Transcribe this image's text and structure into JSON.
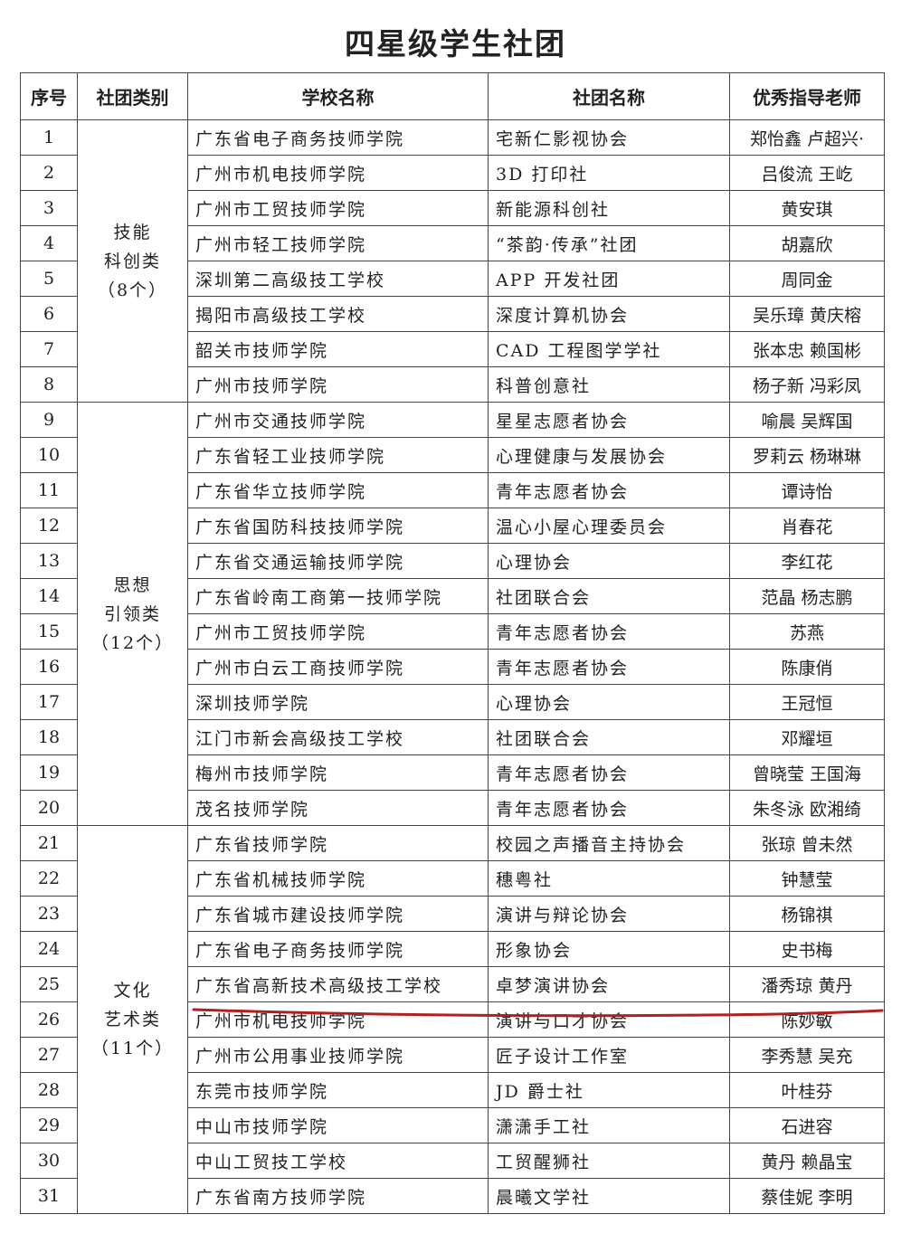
{
  "title": "四星级学生社团",
  "headers": [
    "序号",
    "社团类别",
    "学校名称",
    "社团名称",
    "优秀指导老师"
  ],
  "categories": [
    {
      "name_line1": "技能",
      "name_line2": "科创类",
      "count": "（8个）",
      "rows": 8
    },
    {
      "name_line1": "思想",
      "name_line2": "引领类",
      "count": "（12个）",
      "rows": 12
    },
    {
      "name_line1": "文化",
      "name_line2": "艺术类",
      "count": "（11个）",
      "rows": 11
    }
  ],
  "rows": [
    {
      "no": "1",
      "school": "广东省电子商务技师学院",
      "club": "宅新仁影视协会",
      "teacher": "郑怡鑫 卢超兴·"
    },
    {
      "no": "2",
      "school": "广州市机电技师学院",
      "club": "3D 打印社",
      "teacher": "吕俊流 王屹"
    },
    {
      "no": "3",
      "school": "广州市工贸技师学院",
      "club": "新能源科创社",
      "teacher": "黄安琪"
    },
    {
      "no": "4",
      "school": "广州市轻工技师学院",
      "club": "“茶韵·传承”社团",
      "teacher": "胡嘉欣"
    },
    {
      "no": "5",
      "school": "深圳第二高级技工学校",
      "club": "APP 开发社团",
      "teacher": "周同金"
    },
    {
      "no": "6",
      "school": "揭阳市高级技工学校",
      "club": "深度计算机协会",
      "teacher": "吴乐璋 黄庆榕"
    },
    {
      "no": "7",
      "school": "韶关市技师学院",
      "club": "CAD 工程图学学社",
      "teacher": "张本忠 赖国彬"
    },
    {
      "no": "8",
      "school": "广州市技师学院",
      "club": "科普创意社",
      "teacher": "杨子新 冯彩凤"
    },
    {
      "no": "9",
      "school": "广州市交通技师学院",
      "club": "星星志愿者协会",
      "teacher": "喻晨 吴辉国"
    },
    {
      "no": "10",
      "school": "广东省轻工业技师学院",
      "club": "心理健康与发展协会",
      "teacher": "罗莉云 杨琳琳"
    },
    {
      "no": "11",
      "school": "广东省华立技师学院",
      "club": "青年志愿者协会",
      "teacher": "谭诗怡"
    },
    {
      "no": "12",
      "school": "广东省国防科技技师学院",
      "club": "温心小屋心理委员会",
      "teacher": "肖春花"
    },
    {
      "no": "13",
      "school": "广东省交通运输技师学院",
      "club": "心理协会",
      "teacher": "李红花"
    },
    {
      "no": "14",
      "school": "广东省岭南工商第一技师学院",
      "club": "社团联合会",
      "teacher": "范晶 杨志鹏"
    },
    {
      "no": "15",
      "school": "广州市工贸技师学院",
      "club": "青年志愿者协会",
      "teacher": "苏燕"
    },
    {
      "no": "16",
      "school": "广州市白云工商技师学院",
      "club": "青年志愿者协会",
      "teacher": "陈康俏"
    },
    {
      "no": "17",
      "school": "深圳技师学院",
      "club": "心理协会",
      "teacher": "王冠恒"
    },
    {
      "no": "18",
      "school": "江门市新会高级技工学校",
      "club": "社团联合会",
      "teacher": "邓耀垣"
    },
    {
      "no": "19",
      "school": "梅州市技师学院",
      "club": "青年志愿者协会",
      "teacher": "曾晓莹 王国海"
    },
    {
      "no": "20",
      "school": "茂名技师学院",
      "club": "青年志愿者协会",
      "teacher": "朱冬泳 欧湘绮"
    },
    {
      "no": "21",
      "school": "广东省技师学院",
      "club": "校园之声播音主持协会",
      "teacher": "张琼 曾未然"
    },
    {
      "no": "22",
      "school": "广东省机械技师学院",
      "club": "穗粤社",
      "teacher": "钟慧莹"
    },
    {
      "no": "23",
      "school": "广东省城市建设技师学院",
      "club": "演讲与辩论协会",
      "teacher": "杨锦祺"
    },
    {
      "no": "24",
      "school": "广东省电子商务技师学院",
      "club": "形象协会",
      "teacher": "史书梅"
    },
    {
      "no": "25",
      "school": "广东省高新技术高级技工学校",
      "club": "卓梦演讲协会",
      "teacher": "潘秀琼 黄丹"
    },
    {
      "no": "26",
      "school": "广州市机电技师学院",
      "club": "演讲与口才协会",
      "teacher": "陈妙敏"
    },
    {
      "no": "27",
      "school": "广州市公用事业技师学院",
      "club": "匠子设计工作室",
      "teacher": "李秀慧 吴充"
    },
    {
      "no": "28",
      "school": "东莞市技师学院",
      "club": "JD 爵士社",
      "teacher": "叶桂芬"
    },
    {
      "no": "29",
      "school": "中山市技师学院",
      "club": "潇潇手工社",
      "teacher": "石进容"
    },
    {
      "no": "30",
      "school": "中山工贸技工学校",
      "club": "工贸醒狮社",
      "teacher": "黄丹 赖晶宝"
    },
    {
      "no": "31",
      "school": "广东省南方技师学院",
      "club": "晨曦文学社",
      "teacher": "蔡佳妮 李明"
    }
  ],
  "highlight_color": "#b0201e"
}
